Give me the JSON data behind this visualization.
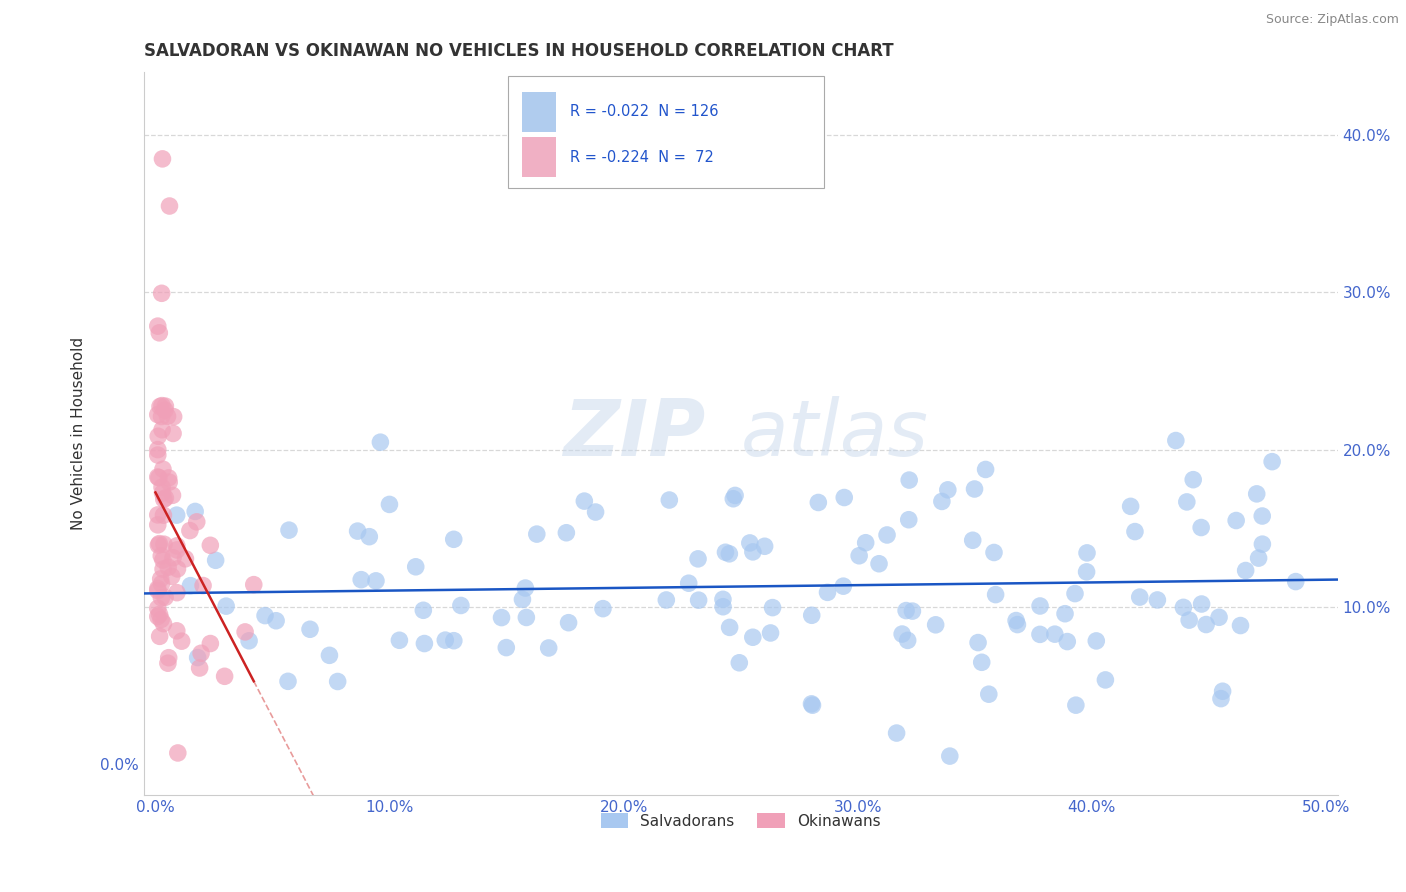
{
  "title": "SALVADORAN VS OKINAWAN NO VEHICLES IN HOUSEHOLD CORRELATION CHART",
  "source": "Source: ZipAtlas.com",
  "ylabel": "No Vehicles in Household",
  "blue_scatter_color": "#a8c8f0",
  "pink_scatter_color": "#f0a0b8",
  "blue_line_color": "#1a56c4",
  "pink_line_color": "#cc2222",
  "xlim": [
    -0.005,
    0.505
  ],
  "ylim": [
    -0.02,
    0.44
  ],
  "xticks": [
    0.0,
    0.1,
    0.2,
    0.3,
    0.4,
    0.5
  ],
  "yticks_left": [
    0.0
  ],
  "yticks_right": [
    0.1,
    0.2,
    0.3,
    0.4
  ],
  "xtick_labels": [
    "0.0%",
    "10.0%",
    "20.0%",
    "30.0%",
    "40.0%",
    "50.0%"
  ],
  "ytick_labels_left": [
    "0.0%"
  ],
  "ytick_labels_right": [
    "10.0%",
    "20.0%",
    "30.0%",
    "40.0%"
  ],
  "watermark_zip": "ZIP",
  "watermark_atlas": "atlas",
  "grid_color": "#d8d8d8",
  "legend_blue_text": "R = -0.022  N = 126",
  "legend_pink_text": "R = -0.224  N =  72",
  "legend_blue_color": "#b0ccee",
  "legend_pink_color": "#f0b0c4",
  "blue_r": -0.022,
  "pink_r": -0.224,
  "blue_n": 126,
  "pink_n": 72
}
